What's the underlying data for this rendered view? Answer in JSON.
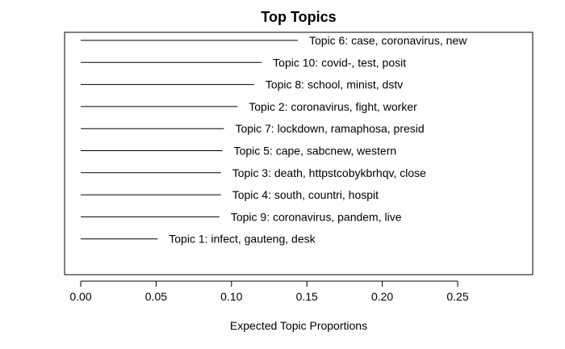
{
  "chart_data": {
    "type": "bar",
    "title": "Top Topics",
    "xlabel": "Expected Topic Proportions",
    "ylabel": "",
    "xlim": [
      0,
      0.3
    ],
    "xticks": [
      0.0,
      0.05,
      0.1,
      0.15,
      0.2,
      0.25
    ],
    "xtick_labels": [
      "0.00",
      "0.05",
      "0.10",
      "0.15",
      "0.20",
      "0.25"
    ],
    "orientation": "horizontal",
    "grid": false,
    "bars": [
      {
        "label": "Topic 6: case, coronavirus, new",
        "value": 0.144
      },
      {
        "label": "Topic 10: covid-, test, posit",
        "value": 0.12
      },
      {
        "label": "Topic 8: school, minist, dstv",
        "value": 0.115
      },
      {
        "label": "Topic 2: coronavirus, fight, worker",
        "value": 0.104
      },
      {
        "label": "Topic 7: lockdown, ramaphosa, presid",
        "value": 0.095
      },
      {
        "label": "Topic 5: cape, sabcnew, western",
        "value": 0.094
      },
      {
        "label": "Topic 3: death, httpstcobykbrhqv, close",
        "value": 0.093
      },
      {
        "label": "Topic 4: south, countri, hospit",
        "value": 0.093
      },
      {
        "label": "Topic 9: coronavirus, pandem, live",
        "value": 0.092
      },
      {
        "label": "Topic 1: infect, gauteng, desk",
        "value": 0.051
      }
    ]
  }
}
